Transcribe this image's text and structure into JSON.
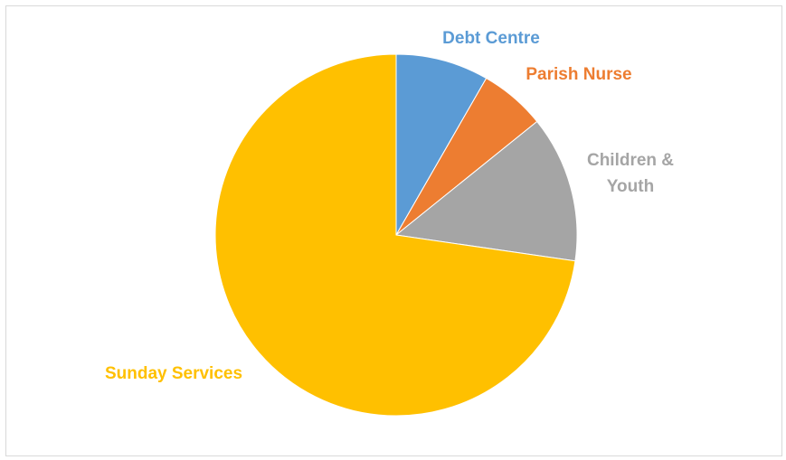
{
  "chart_data": {
    "type": "pie",
    "title": "",
    "start_angle_deg": 0,
    "direction": "clockwise",
    "legend": "none",
    "slices": [
      {
        "label": "Debt Centre",
        "value": 8.3,
        "color": "#5b9bd5"
      },
      {
        "label": "Parish Nurse",
        "value": 5.9,
        "color": "#ed7d31"
      },
      {
        "label": "Children & Youth",
        "label_lines": [
          "Children &",
          "Youth"
        ],
        "value": 13.1,
        "color": "#a5a5a5"
      },
      {
        "label": "Sunday Services",
        "value": 72.7,
        "color": "#ffc000"
      }
    ]
  }
}
